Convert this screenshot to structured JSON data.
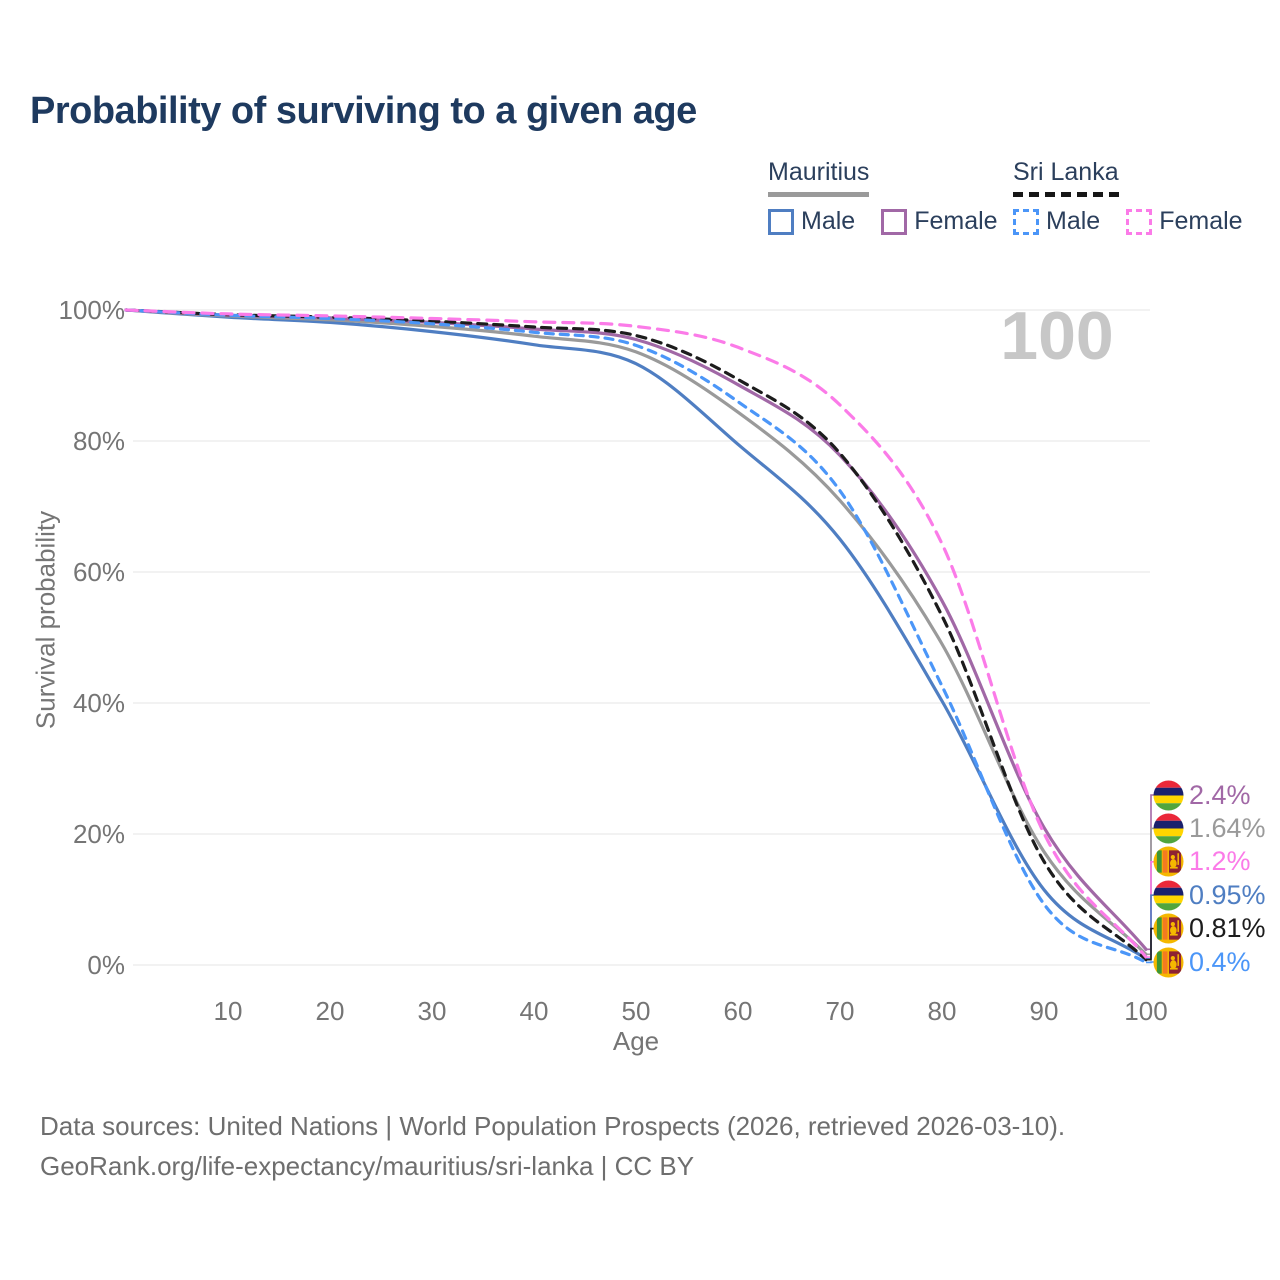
{
  "title": "Probability of surviving to a given age",
  "watermark": "100",
  "legend": {
    "mauritius": {
      "title": "Mauritius",
      "male": "Male",
      "female": "Female",
      "male_color": "#4f7ec2",
      "female_color": "#a168a6",
      "underline_color": "#9a9a9a",
      "line_style": "solid"
    },
    "sri_lanka": {
      "title": "Sri Lanka",
      "male": "Male",
      "female": "Female",
      "male_color": "#4b96f8",
      "female_color": "#fb7be8",
      "underline_color": "#161616",
      "line_style": "dashed"
    }
  },
  "footer": {
    "line1": "Data sources: United Nations | World Population Prospects (2026, retrieved 2026-03-10).",
    "line2": "GeoRank.org/life-expectancy/mauritius/sri-lanka | CC BY"
  },
  "chart_data": {
    "type": "line",
    "title": "Probability of surviving to a given age",
    "xlabel": "Age",
    "ylabel": "Survival probability",
    "xlim": [
      0,
      100
    ],
    "ylim": [
      0,
      100
    ],
    "grid": "horizontal",
    "gridline_color": "#ededed",
    "legend_position": "top-right",
    "x_ticks": [
      10,
      20,
      30,
      40,
      50,
      60,
      70,
      80,
      90,
      100
    ],
    "y_ticks": [
      {
        "value": 0,
        "label": "0%"
      },
      {
        "value": 20,
        "label": "20%"
      },
      {
        "value": 40,
        "label": "40%"
      },
      {
        "value": 60,
        "label": "60%"
      },
      {
        "value": 80,
        "label": "80%"
      },
      {
        "value": 100,
        "label": "100%"
      }
    ],
    "ages": [
      0,
      10,
      20,
      30,
      40,
      50,
      60,
      70,
      80,
      90,
      100
    ],
    "series": [
      {
        "name": "Mauritius Male",
        "country": "Mauritius",
        "sex": "Male",
        "style": "solid",
        "color": "#4f7ec2",
        "dash": null,
        "values": [
          100,
          98.9,
          98.1,
          96.7,
          94.7,
          91.8,
          79.5,
          65.0,
          40.3,
          11.5,
          0.95
        ],
        "end_label": "0.95%"
      },
      {
        "name": "Mauritius Both sexes",
        "country": "Mauritius",
        "sex": "Both",
        "style": "solid",
        "color": "#9a9a9a",
        "dash": null,
        "values": [
          100,
          99.1,
          98.5,
          97.5,
          96.0,
          93.6,
          84.4,
          70.9,
          49.0,
          17.3,
          1.64
        ],
        "end_label": "1.64%"
      },
      {
        "name": "Mauritius Female",
        "country": "Mauritius",
        "sex": "Female",
        "style": "solid",
        "color": "#a168a6",
        "dash": null,
        "values": [
          100,
          99.2,
          98.8,
          98.1,
          97.1,
          95.5,
          88.6,
          77.8,
          55.6,
          21.0,
          2.4
        ],
        "end_label": "2.4%"
      },
      {
        "name": "Sri Lanka Both sexes",
        "country": "Sri Lanka",
        "sex": "Both",
        "style": "dashed",
        "color": "#1c1c1c",
        "dash": "9 7",
        "values": [
          100,
          99.3,
          98.9,
          98.3,
          97.4,
          96.1,
          89.4,
          78.1,
          53.3,
          15.8,
          0.81
        ],
        "end_label": "0.81%"
      },
      {
        "name": "Sri Lanka Male",
        "country": "Sri Lanka",
        "sex": "Male",
        "style": "dashed",
        "color": "#4b96f8",
        "dash": "8 7",
        "values": [
          100,
          99.2,
          98.7,
          97.9,
          96.6,
          94.6,
          86.0,
          72.4,
          42.6,
          9.3,
          0.4
        ],
        "end_label": "0.4%"
      },
      {
        "name": "Sri Lanka Female",
        "country": "Sri Lanka",
        "sex": "Female",
        "style": "dashed",
        "color": "#fb7be8",
        "dash": "11 8",
        "values": [
          100,
          99.4,
          99.1,
          98.7,
          98.2,
          97.5,
          94.3,
          85.5,
          64.3,
          20.1,
          1.2
        ],
        "end_label": "1.2%"
      }
    ],
    "end_labels": [
      {
        "label": "2.4%",
        "series": "Mauritius Female",
        "flag": "mauritius",
        "color": "#a168a6",
        "value": 2.4
      },
      {
        "label": "1.64%",
        "series": "Mauritius Both sexes",
        "flag": "mauritius",
        "color": "#9a9a9a",
        "value": 1.64
      },
      {
        "label": "1.2%",
        "series": "Sri Lanka Female",
        "flag": "sri-lanka",
        "color": "#fb7be8",
        "value": 1.2
      },
      {
        "label": "0.95%",
        "series": "Mauritius Male",
        "flag": "mauritius",
        "color": "#4f7ec2",
        "value": 0.95
      },
      {
        "label": "0.81%",
        "series": "Sri Lanka Both sexes",
        "flag": "sri-lanka",
        "color": "#1c1c1c",
        "value": 0.81
      },
      {
        "label": "0.4%",
        "series": "Sri Lanka Male",
        "flag": "sri-lanka",
        "color": "#4b96f8",
        "value": 0.4
      }
    ],
    "flag_colors": {
      "mauritius": [
        "#EA2839",
        "#1A206D",
        "#FFD500",
        "#51A53D"
      ],
      "sri_lanka": {
        "gold": "#F5B800",
        "green": "#3D9635",
        "orange": "#F47B20",
        "maroon": "#8E2232"
      }
    }
  }
}
